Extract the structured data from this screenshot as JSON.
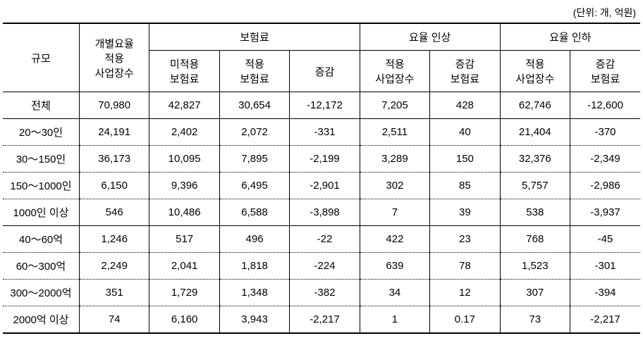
{
  "unit_label": "(단위: 개, 억원)",
  "header": {
    "r1": {
      "col0": "규모",
      "col1_top": "개별요율",
      "col1_bot": "적용\n사업장수",
      "grp2": "보험료",
      "grp3": "요율 인상",
      "grp4": "요율 인하"
    },
    "r2": {
      "c2": "미적용\n보험료",
      "c3": "적용\n보험료",
      "c4": "증감",
      "c5": "적용\n사업장수",
      "c6": "증감\n보험료",
      "c7": "적용\n사업장수",
      "c8": "증감\n보험료"
    }
  },
  "rows": [
    {
      "label": "전체",
      "c1": "70,980",
      "c2": "42,827",
      "c3": "30,654",
      "c4": "-12,172",
      "c5": "7,205",
      "c6": "428",
      "c7": "62,746",
      "c8": "-12,600",
      "section": false
    },
    {
      "label": "20～30인",
      "c1": "24,191",
      "c2": "2,402",
      "c3": "2,072",
      "c4": "-331",
      "c5": "2,511",
      "c6": "40",
      "c7": "21,404",
      "c8": "-370",
      "section": true
    },
    {
      "label": "30～150인",
      "c1": "36,173",
      "c2": "10,095",
      "c3": "7,895",
      "c4": "-2,199",
      "c5": "3,289",
      "c6": "150",
      "c7": "32,376",
      "c8": "-2,349",
      "section": false
    },
    {
      "label": "150～1000인",
      "c1": "6,150",
      "c2": "9,396",
      "c3": "6,495",
      "c4": "-2,901",
      "c5": "302",
      "c6": "85",
      "c7": "5,757",
      "c8": "-2,986",
      "section": false
    },
    {
      "label": "1000인 이상",
      "c1": "546",
      "c2": "10,486",
      "c3": "6,588",
      "c4": "-3,898",
      "c5": "7",
      "c6": "39",
      "c7": "538",
      "c8": "-3,937",
      "section": false
    },
    {
      "label": "40～60억",
      "c1": "1,246",
      "c2": "517",
      "c3": "496",
      "c4": "-22",
      "c5": "422",
      "c6": "23",
      "c7": "768",
      "c8": "-45",
      "section": true
    },
    {
      "label": "60～300억",
      "c1": "2,249",
      "c2": "2,041",
      "c3": "1,818",
      "c4": "-224",
      "c5": "639",
      "c6": "78",
      "c7": "1,523",
      "c8": "-301",
      "section": false
    },
    {
      "label": "300～2000억",
      "c1": "351",
      "c2": "1,729",
      "c3": "1,348",
      "c4": "-382",
      "c5": "34",
      "c6": "12",
      "c7": "307",
      "c8": "-394",
      "section": false
    },
    {
      "label": "2000억 이상",
      "c1": "74",
      "c2": "6,160",
      "c3": "3,943",
      "c4": "-2,217",
      "c5": "1",
      "c6": "0.17",
      "c7": "73",
      "c8": "-2,217",
      "section": false
    }
  ]
}
